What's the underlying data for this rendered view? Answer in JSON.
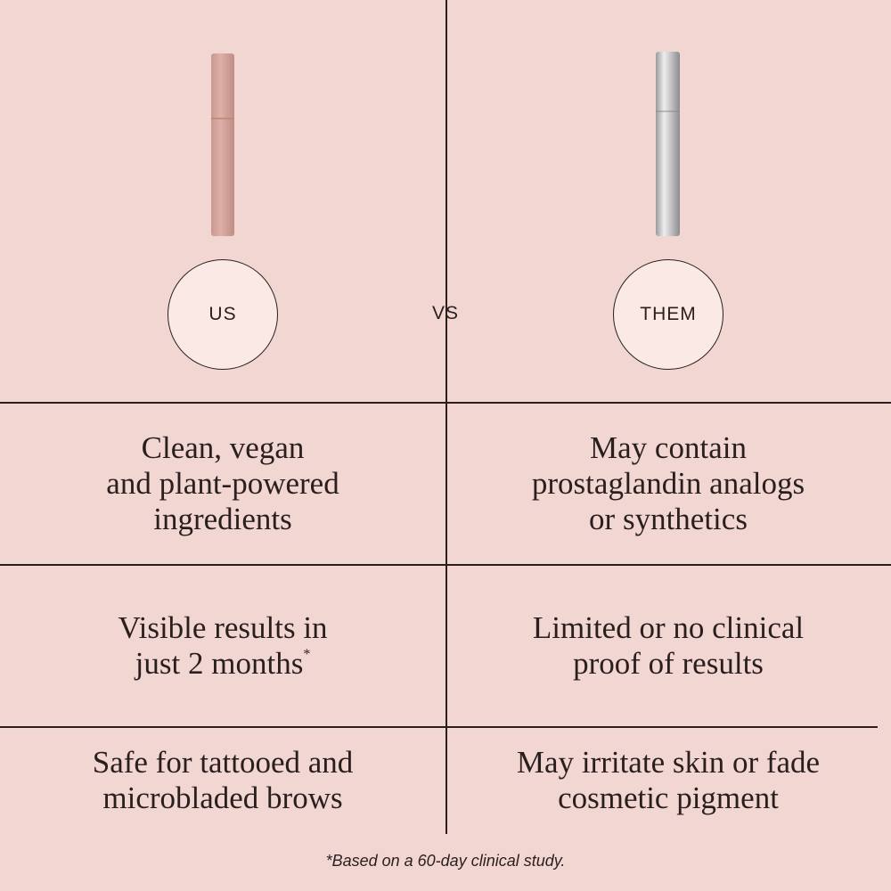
{
  "header": {
    "left_label": "US",
    "middle_label": "VS",
    "right_label": "THEM"
  },
  "rows": [
    {
      "us": [
        "Clean, vegan",
        "and plant-powered",
        "ingredients"
      ],
      "them": [
        "May contain",
        "prostaglandin analogs",
        "or synthetics"
      ]
    },
    {
      "us": [
        "Visible results in",
        "just 2 months"
      ],
      "us_mark": "*",
      "them": [
        "Limited or no clinical",
        "proof of results"
      ]
    },
    {
      "us": [
        "Safe for tattooed and",
        "microbladed brows"
      ],
      "them": [
        "May irritate skin or fade",
        "cosmetic pigment"
      ]
    }
  ],
  "footnote": "*Based on a 60-day clinical study."
}
